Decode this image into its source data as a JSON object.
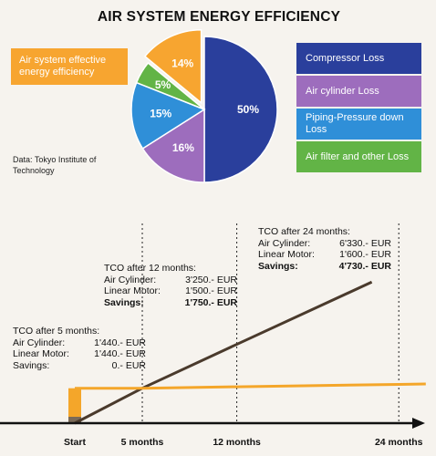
{
  "pie": {
    "title": "AIR SYSTEM ENERGY EFFICIENCY",
    "effective_label": "Air system effective energy efficiency",
    "source": "Data: Tokyo Institute of Technology",
    "legend": [
      {
        "label": "Compressor Loss",
        "color": "#2a3f9c"
      },
      {
        "label": "Air cylinder Loss",
        "color": "#9d6dbd"
      },
      {
        "label": "Piping-Pressure down Loss",
        "color": "#2f8fd8"
      },
      {
        "label": "Air filter and other Loss",
        "color": "#62b446"
      }
    ]
  },
  "chart_data": [
    {
      "type": "pie",
      "title": "AIR SYSTEM ENERGY EFFICIENCY",
      "slices": [
        {
          "name": "Compressor Loss",
          "value": 50,
          "label": "50%",
          "color": "#2a3f9c"
        },
        {
          "name": "Air cylinder Loss",
          "value": 16,
          "label": "16%",
          "color": "#9d6dbd"
        },
        {
          "name": "Piping-Pressure down Loss",
          "value": 15,
          "label": "15%",
          "color": "#2f8fd8"
        },
        {
          "name": "Air filter and other Loss",
          "value": 5,
          "label": "5%",
          "color": "#62b446"
        },
        {
          "name": "Air system effective energy efficiency",
          "value": 14,
          "label": "14%",
          "color": "#f7a530"
        }
      ]
    },
    {
      "type": "line",
      "categories": [
        "Start",
        "5 months",
        "12 months",
        "24 months"
      ],
      "x": [
        0,
        5,
        12,
        24
      ],
      "series": [
        {
          "name": "Air Cylinder",
          "color": "#4a3a2c",
          "values": [
            0,
            1440,
            3250,
            6330
          ]
        },
        {
          "name": "Linear Motor",
          "color": "#f4a62a",
          "values": [
            1440,
            1440,
            1500,
            1600
          ]
        }
      ],
      "tco_blocks": [
        {
          "title": "TCO after 5 months:",
          "rows": [
            {
              "label": "Air Cylinder:",
              "value": "1'440.- EUR",
              "bold": false
            },
            {
              "label": "Linear Motor:",
              "value": "1'440.- EUR",
              "bold": false
            },
            {
              "label": "Savings:",
              "value": "0.- EUR",
              "bold": false
            }
          ]
        },
        {
          "title": "TCO after 12 months:",
          "rows": [
            {
              "label": "Air Cylinder:",
              "value": "3'250.- EUR",
              "bold": false
            },
            {
              "label": "Linear Motor:",
              "value": "1'500.- EUR",
              "bold": false
            },
            {
              "label": "Savings:",
              "value": "1'750.- EUR",
              "bold": true
            }
          ]
        },
        {
          "title": "TCO after 24 months:",
          "rows": [
            {
              "label": "Air Cylinder:",
              "value": "6'330.- EUR",
              "bold": false
            },
            {
              "label": "Linear Motor:",
              "value": "1'600.- EUR",
              "bold": false
            },
            {
              "label": "Savings:",
              "value": "4'730.- EUR",
              "bold": true
            }
          ]
        }
      ]
    }
  ]
}
